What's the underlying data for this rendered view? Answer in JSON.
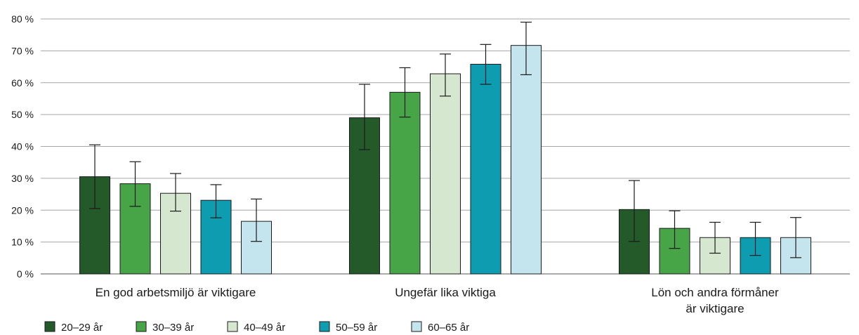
{
  "chart_data": {
    "type": "bar",
    "y_unit": "%",
    "ylim": [
      0,
      80
    ],
    "yticks": [
      0,
      10,
      20,
      30,
      40,
      50,
      60,
      70,
      80
    ],
    "ytick_labels": [
      "0 %",
      "10 %",
      "20 %",
      "30 %",
      "40 %",
      "50 %",
      "60 %",
      "70 %",
      "80 %"
    ],
    "grid": true,
    "legend_position": "bottom-left",
    "categories": [
      [
        "En god arbetsmiljö är viktigare"
      ],
      [
        "Ungefär lika viktiga"
      ],
      [
        "Lön och andra förmåner",
        "är viktigare"
      ]
    ],
    "series": [
      {
        "name": "20–29 år",
        "color": "#245a2a",
        "values": [
          30.5,
          49.0,
          20.2
        ],
        "err_low": [
          20.5,
          39.0,
          10.2
        ],
        "err_high": [
          40.5,
          59.5,
          29.3
        ]
      },
      {
        "name": "30–39 år",
        "color": "#47a447",
        "values": [
          28.3,
          57.0,
          14.3
        ],
        "err_low": [
          21.2,
          49.2,
          8.0
        ],
        "err_high": [
          35.2,
          64.7,
          19.8
        ]
      },
      {
        "name": "40–49 år",
        "color": "#d5e8cf",
        "values": [
          25.3,
          62.8,
          11.4
        ],
        "err_low": [
          19.7,
          55.8,
          6.5
        ],
        "err_high": [
          31.5,
          69.0,
          16.2
        ]
      },
      {
        "name": "50–59 år",
        "color": "#0e9db0",
        "values": [
          23.1,
          65.8,
          11.4
        ],
        "err_low": [
          17.6,
          59.5,
          5.8
        ],
        "err_high": [
          28.0,
          72.0,
          16.2
        ]
      },
      {
        "name": "60–65 år",
        "color": "#c4e4ee",
        "values": [
          16.5,
          71.7,
          11.4
        ],
        "err_low": [
          10.2,
          62.5,
          5.1
        ],
        "err_high": [
          23.5,
          79.0,
          17.7
        ]
      }
    ]
  }
}
